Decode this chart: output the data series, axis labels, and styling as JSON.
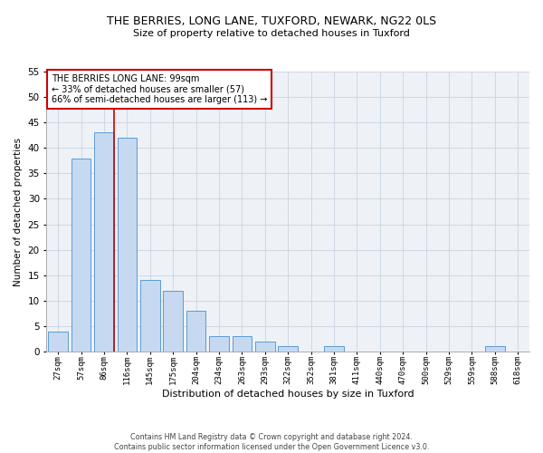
{
  "title1": "THE BERRIES, LONG LANE, TUXFORD, NEWARK, NG22 0LS",
  "title2": "Size of property relative to detached houses in Tuxford",
  "xlabel": "Distribution of detached houses by size in Tuxford",
  "ylabel": "Number of detached properties",
  "categories": [
    "27sqm",
    "57sqm",
    "86sqm",
    "116sqm",
    "145sqm",
    "175sqm",
    "204sqm",
    "234sqm",
    "263sqm",
    "293sqm",
    "322sqm",
    "352sqm",
    "381sqm",
    "411sqm",
    "440sqm",
    "470sqm",
    "500sqm",
    "529sqm",
    "559sqm",
    "588sqm",
    "618sqm"
  ],
  "values": [
    4,
    38,
    43,
    42,
    14,
    12,
    8,
    3,
    3,
    2,
    1,
    0,
    1,
    0,
    0,
    0,
    0,
    0,
    0,
    1,
    0
  ],
  "bar_color": "#c6d9f0",
  "bar_edge_color": "#5b9bd5",
  "vline_color": "#cc0000",
  "annotation_line1": "THE BERRIES LONG LANE: 99sqm",
  "annotation_line2": "← 33% of detached houses are smaller (57)",
  "annotation_line3": "66% of semi-detached houses are larger (113) →",
  "annotation_box_color": "white",
  "annotation_box_edge": "#cc0000",
  "ylim": [
    0,
    55
  ],
  "yticks": [
    0,
    5,
    10,
    15,
    20,
    25,
    30,
    35,
    40,
    45,
    50,
    55
  ],
  "grid_color": "#c8d4e0",
  "bg_color": "#eef2f7",
  "footer1": "Contains HM Land Registry data © Crown copyright and database right 2024.",
  "footer2": "Contains public sector information licensed under the Open Government Licence v3.0."
}
